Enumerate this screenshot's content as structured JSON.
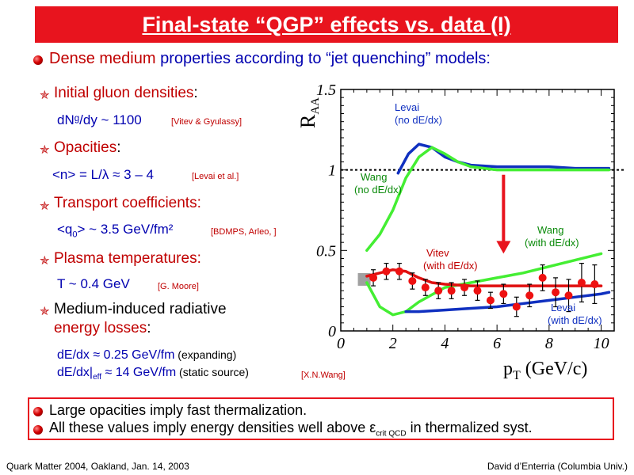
{
  "title": "Final-state “QGP” effects vs. data (I)",
  "intro": {
    "highlight": "Dense medium",
    "rest": " properties according to “jet quenching” models:"
  },
  "items": [
    {
      "label_a": "Initial gluon densities",
      "label_b": ":",
      "value": "dNᵍ/dy ~ 1100",
      "ref": "[Vitev & Gyulassy]"
    },
    {
      "label_a": "Opacities",
      "label_b": ":",
      "value": "<n> = L/λ ≈ 3 – 4",
      "ref": "[Levai et al.]"
    },
    {
      "label_a": "Transport coefficients:",
      "label_b": "",
      "value_pre": "<q",
      "value_sub": "0",
      "value_post": "> ~ 3.5 GeV/fm²",
      "ref": "[BDMPS, Arleo, ]"
    },
    {
      "label_a": "Plasma temperatures:",
      "label_b": "",
      "value": "T ~ 0.4 GeV",
      "ref": "[G. Moore]"
    },
    {
      "label_a": "Medium-induced radiative",
      "label_b": "energy losses",
      "label_c": ":",
      "value1_main": "dE/dx ≈ 0.25 GeV/fm",
      "value1_note": " (expanding)",
      "value2_pre": "dE/dx|",
      "value2_sub": "eff",
      "value2_main": " ≈ 14 GeV/fm",
      "value2_note": " (static source)",
      "ref": "[X.N.Wang]"
    }
  ],
  "conclusions": [
    {
      "text": "Large opacities imply fast thermalization."
    },
    {
      "pre": "All these values imply energy densities well above ε",
      "sub": "crit QCD",
      "post": " in thermalized syst."
    }
  ],
  "footer": {
    "left": "Quark Matter 2004, Oakland, Jan. 14, 2003",
    "right": "David d’Enterria (Columbia Univ.)"
  },
  "colors": {
    "accent_red": "#e8141e",
    "text_blue": "#0000b0",
    "curve_blue": "#1030c0",
    "curve_green": "#44ee33",
    "curve_red": "#e01010",
    "data_red": "#ee1111"
  },
  "chart_data": {
    "type": "line",
    "title": "",
    "xlabel": "p_T (GeV/c)",
    "ylabel": "R_AA",
    "xlim": [
      0,
      10.5
    ],
    "ylim": [
      0,
      1.5
    ],
    "x_ticks": [
      0,
      2,
      4,
      6,
      8,
      10
    ],
    "y_ticks": [
      0,
      0.5,
      1,
      1.5
    ],
    "y_tick_labels": [
      "0",
      "0.5",
      "1",
      "1.5"
    ],
    "reference_line": 1.0,
    "series": [
      {
        "name": "Levai (no dE/dx)",
        "color": "#1030c0",
        "x": [
          2.2,
          2.6,
          3.0,
          3.5,
          4.0,
          4.5,
          5.0,
          6.0,
          7.0,
          8.0,
          9.0,
          10.0,
          10.3
        ],
        "y": [
          0.98,
          1.1,
          1.16,
          1.14,
          1.08,
          1.05,
          1.03,
          1.02,
          1.02,
          1.02,
          1.01,
          1.01,
          1.01
        ]
      },
      {
        "name": "Wang (no dE/dx)",
        "color": "#44ee33",
        "x": [
          1.0,
          1.5,
          2.0,
          2.5,
          3.0,
          3.5,
          4.0,
          4.5,
          5.0,
          6.0,
          7.0,
          8.0,
          9.0,
          10.0,
          10.3
        ],
        "y": [
          0.5,
          0.6,
          0.75,
          0.95,
          1.08,
          1.14,
          1.1,
          1.05,
          1.02,
          1.0,
          1.0,
          1.0,
          1.0,
          1.0,
          1.0
        ]
      },
      {
        "name": "Wang (with dE/dx)",
        "color": "#44ee33",
        "x": [
          1.0,
          1.5,
          2.0,
          2.5,
          3.0,
          4.0,
          5.0,
          6.0,
          7.0,
          8.0,
          9.0,
          10.0
        ],
        "y": [
          0.3,
          0.15,
          0.1,
          0.12,
          0.18,
          0.27,
          0.3,
          0.33,
          0.36,
          0.4,
          0.44,
          0.48
        ]
      },
      {
        "name": "Vitev (with dE/dx)",
        "color": "#e01010",
        "x": [
          1.0,
          1.5,
          2.0,
          2.5,
          3.0,
          3.5,
          4.0,
          5.0,
          6.0,
          7.0,
          8.0,
          9.0,
          10.0
        ],
        "y": [
          0.34,
          0.36,
          0.38,
          0.37,
          0.33,
          0.3,
          0.29,
          0.28,
          0.28,
          0.28,
          0.28,
          0.28,
          0.28
        ]
      },
      {
        "name": "Levai (with dE/dx)",
        "color": "#1030c0",
        "x": [
          2.5,
          3.0,
          4.0,
          5.0,
          6.0,
          7.0,
          8.0,
          9.0,
          10.0,
          10.3
        ],
        "y": [
          0.12,
          0.12,
          0.13,
          0.14,
          0.15,
          0.17,
          0.19,
          0.21,
          0.23,
          0.24
        ]
      },
      {
        "name": "data",
        "color": "#ee1111",
        "x": [
          1.25,
          1.75,
          2.25,
          2.75,
          3.25,
          3.75,
          4.25,
          4.75,
          5.25,
          5.75,
          6.25,
          6.75,
          7.25,
          7.75,
          8.25,
          8.75,
          9.25,
          9.75
        ],
        "y": [
          0.33,
          0.37,
          0.37,
          0.31,
          0.27,
          0.25,
          0.25,
          0.27,
          0.25,
          0.19,
          0.23,
          0.15,
          0.22,
          0.33,
          0.24,
          0.22,
          0.3,
          0.29
        ],
        "err": [
          0.05,
          0.05,
          0.05,
          0.05,
          0.05,
          0.05,
          0.05,
          0.05,
          0.06,
          0.05,
          0.06,
          0.06,
          0.07,
          0.08,
          0.09,
          0.1,
          0.12,
          0.12
        ]
      }
    ],
    "annotations": [
      {
        "text1": "Levai",
        "text2": "(no dE/dx)",
        "color": "#1030c0"
      },
      {
        "text1": "Wang",
        "text2": "(no dE/dx)",
        "color": "#0a8a0a"
      },
      {
        "text1": "Wang",
        "text2": "(with dE/dx)",
        "color": "#0a8a0a"
      },
      {
        "text1": "Vitev",
        "text2": "(with dE/dx)",
        "color": "#c00000"
      },
      {
        "text1": "Levai",
        "text2": "(with dE/dx)",
        "color": "#1030c0"
      }
    ],
    "normalization_box": {
      "x": 0.9,
      "y": 0.32,
      "err_frac": 0.04,
      "color": "#a0a0a0"
    },
    "arrow": {
      "x": 6.25,
      "y_from": 0.97,
      "y_to": 0.48,
      "color": "#e8141e"
    }
  }
}
